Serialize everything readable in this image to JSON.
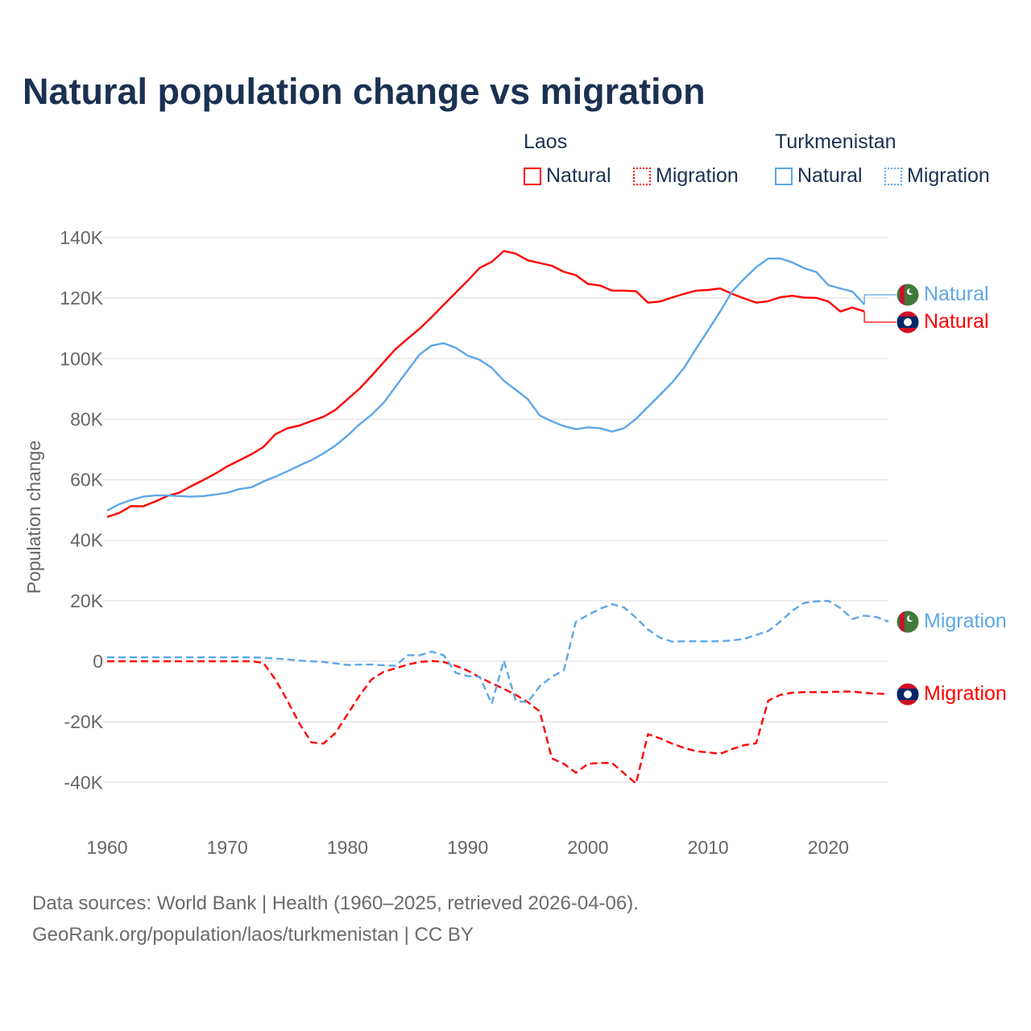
{
  "title": "Natural population change vs migration",
  "legend": {
    "groups": [
      {
        "name": "Laos",
        "color": "#ff0000",
        "items": [
          "Natural",
          "Migration"
        ]
      },
      {
        "name": "Turkmenistan",
        "color": "#5ea7e8",
        "items": [
          "Natural",
          "Migration"
        ]
      }
    ]
  },
  "footer": {
    "line1": "Data sources: World Bank | Health (1960–2025, retrieved 2026-04-06).",
    "line2": "GeoRank.org/population/laos/turkmenistan | CC BY"
  },
  "chart_data": {
    "type": "line",
    "title": "Natural population change vs migration",
    "xlabel": "",
    "ylabel": "Population change",
    "xlim": [
      1960,
      2025
    ],
    "ylim": [
      -50,
      140
    ],
    "y_unit": "K",
    "x_ticks": [
      "1960",
      "1970",
      "1980",
      "1990",
      "2000",
      "2010",
      "2020"
    ],
    "y_ticks": [
      "-40K",
      "-20K",
      "0",
      "20K",
      "40K",
      "60K",
      "80K",
      "100K",
      "120K",
      "140K"
    ],
    "y_tick_values": [
      -40,
      -20,
      0,
      20,
      40,
      60,
      80,
      100,
      120,
      140
    ],
    "grid": true,
    "series": [
      {
        "name": "Laos Natural",
        "country": "Laos",
        "label": "Natural",
        "style": "solid",
        "color": "#ff0000",
        "start_year": 1960,
        "values": [
          47.7,
          49,
          51.3,
          51.2,
          52.8,
          54.6,
          55.7,
          57.9,
          59.9,
          62,
          64.4,
          66.4,
          68.4,
          70.8,
          75,
          77,
          77.9,
          79.4,
          80.8,
          83.1,
          86.6,
          90.1,
          94.3,
          98.8,
          103.2,
          106.6,
          109.9,
          113.7,
          117.8,
          121.8,
          125.8,
          130,
          132,
          135.6,
          134.7,
          132.5,
          131.6,
          130.7,
          128.7,
          127.6,
          124.7,
          124.2,
          122.5,
          122.5,
          122.3,
          118.5,
          118.9,
          120.2,
          121.4,
          122.5,
          122.7,
          123.2,
          121.4,
          119.9,
          118.5,
          119,
          120.3,
          120.8,
          120.2,
          120.1,
          118.9,
          115.6,
          116.9,
          115.6
        ]
      },
      {
        "name": "Turkmenistan Natural",
        "country": "Turkmenistan",
        "label": "Natural",
        "style": "solid",
        "color": "#5ea7e8",
        "start_year": 1960,
        "values": [
          49.8,
          51.9,
          53.3,
          54.4,
          54.8,
          54.8,
          54.6,
          54.4,
          54.6,
          55.1,
          55.7,
          56.9,
          57.5,
          59.4,
          61,
          62.8,
          64.7,
          66.5,
          68.7,
          71.3,
          74.6,
          78.3,
          81.5,
          85.4,
          90.8,
          96.1,
          101.4,
          104.3,
          105.1,
          103.6,
          101,
          99.6,
          97,
          92.7,
          89.7,
          86.6,
          81.2,
          79.3,
          77.7,
          76.7,
          77.3,
          77,
          75.9,
          77,
          80.1,
          84.1,
          88.1,
          92.1,
          97,
          103.3,
          109.4,
          115.6,
          122.2,
          126.4,
          130.2,
          133.1,
          133.1,
          131.8,
          129.9,
          128.6,
          124.3,
          123.2,
          122.2,
          117.9
        ]
      },
      {
        "name": "Laos Migration",
        "country": "Laos",
        "label": "Migration",
        "style": "dashed",
        "color": "#ff0000",
        "start_year": 1960,
        "values": [
          0,
          0,
          0,
          0,
          0,
          0,
          0,
          0,
          0,
          0,
          0,
          0,
          0,
          -0.5,
          -6,
          -13,
          -20.6,
          -26.8,
          -27.2,
          -23.7,
          -17.5,
          -11.3,
          -6,
          -3.5,
          -2.3,
          -1.1,
          -0.2,
          0.1,
          -0.2,
          -1.5,
          -3.1,
          -5.3,
          -7.3,
          -9.1,
          -11.1,
          -13.5,
          -16.6,
          -32.1,
          -33.9,
          -36.8,
          -33.9,
          -33.6,
          -33.6,
          -37,
          -40.4,
          -24.1,
          -25.5,
          -27.2,
          -28.6,
          -29.7,
          -30.1,
          -30.6,
          -29,
          -27.7,
          -27.1,
          -13,
          -11.1,
          -10.4,
          -10.2,
          -10.2,
          -10.2,
          -10,
          -10,
          -10.4,
          -10.7,
          -10.8
        ]
      },
      {
        "name": "Turkmenistan Migration",
        "country": "Turkmenistan",
        "label": "Migration",
        "style": "dashed",
        "color": "#5ea7e8",
        "start_year": 1960,
        "values": [
          1.3,
          1.3,
          1.3,
          1.3,
          1.3,
          1.3,
          1.3,
          1.3,
          1.3,
          1.3,
          1.3,
          1.3,
          1.3,
          1.2,
          0.9,
          0.6,
          0.2,
          0,
          -0.2,
          -0.7,
          -1.2,
          -1.1,
          -1.1,
          -1.3,
          -1.5,
          2,
          2,
          3.2,
          2,
          -3.8,
          -4.9,
          -5.1,
          -14,
          0.2,
          -13.1,
          -13.5,
          -8.2,
          -5.1,
          -2.9,
          13.1,
          15.3,
          17.3,
          18.9,
          17.8,
          14.4,
          10.5,
          7.8,
          6.5,
          6.6,
          6.6,
          6.6,
          6.6,
          6.9,
          7.4,
          8.7,
          10,
          13.1,
          16.7,
          19.3,
          19.8,
          20,
          17.6,
          14,
          15.1,
          14.6,
          13.1
        ]
      }
    ],
    "end_labels": [
      {
        "series": "Turkmenistan Natural",
        "text": "Natural",
        "flag": "turkmenistan-flag"
      },
      {
        "series": "Laos Natural",
        "text": "Natural",
        "flag": "laos-flag"
      },
      {
        "series": "Turkmenistan Migration",
        "text": "Migration",
        "flag": "turkmenistan-flag"
      },
      {
        "series": "Laos Migration",
        "text": "Migration",
        "flag": "laos-flag"
      }
    ]
  }
}
